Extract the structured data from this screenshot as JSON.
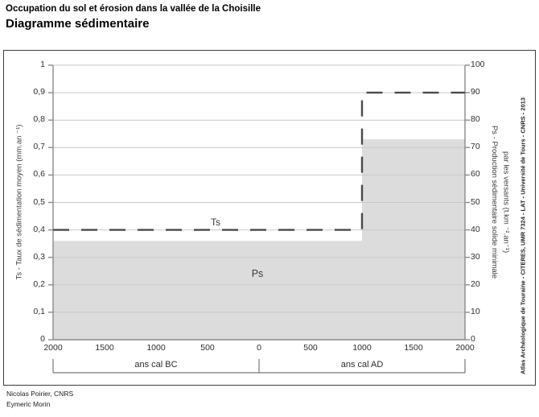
{
  "header": {
    "supertitle": "Occupation du sol et érosion dans la vallée de la Choisille",
    "title": "Diagramme sédimentaire"
  },
  "chart_data": {
    "type": "area",
    "title": "Diagramme sédimentaire",
    "grid": true,
    "x_axis": {
      "range": [
        -2000,
        2000
      ],
      "ticks": [
        {
          "v": -2000,
          "label": "2000"
        },
        {
          "v": -1500,
          "label": "1500"
        },
        {
          "v": -1000,
          "label": "1000"
        },
        {
          "v": -500,
          "label": "500"
        },
        {
          "v": 0,
          "label": "0"
        },
        {
          "v": 500,
          "label": "500"
        },
        {
          "v": 1000,
          "label": "1000"
        },
        {
          "v": 1500,
          "label": "1500"
        },
        {
          "v": 2000,
          "label": "2000"
        }
      ],
      "era_labels": [
        {
          "label": "ans cal BC",
          "span": [
            -2000,
            0
          ]
        },
        {
          "label": "ans cal AD",
          "span": [
            0,
            2000
          ]
        }
      ]
    },
    "y_left_axis": {
      "label": "Ts - Taux de sédimentation moyen (mm.an ⁻¹)",
      "range": [
        0,
        1
      ],
      "ticks": [
        {
          "v": 0,
          "label": "0"
        },
        {
          "v": 0.1,
          "label": "0,1"
        },
        {
          "v": 0.2,
          "label": "0,2"
        },
        {
          "v": 0.3,
          "label": "0,3"
        },
        {
          "v": 0.4,
          "label": "0,4"
        },
        {
          "v": 0.5,
          "label": "0,5"
        },
        {
          "v": 0.6,
          "label": "0,6"
        },
        {
          "v": 0.7,
          "label": "0,7"
        },
        {
          "v": 0.8,
          "label": "0,8"
        },
        {
          "v": 0.9,
          "label": "0,9"
        },
        {
          "v": 1,
          "label": "1"
        }
      ]
    },
    "y_right_axis": {
      "label_line1": "Ps - Production sédimentaire solide minimale",
      "label_line2": "par les versants (t.km ⁻².an⁻¹)",
      "range": [
        0,
        100
      ],
      "ticks": [
        {
          "v": 0,
          "label": "0"
        },
        {
          "v": 10,
          "label": "10"
        },
        {
          "v": 20,
          "label": "20"
        },
        {
          "v": 30,
          "label": "30"
        },
        {
          "v": 40,
          "label": "40"
        },
        {
          "v": 50,
          "label": "50"
        },
        {
          "v": 60,
          "label": "60"
        },
        {
          "v": 70,
          "label": "70"
        },
        {
          "v": 80,
          "label": "80"
        },
        {
          "v": 90,
          "label": "90"
        },
        {
          "v": 100,
          "label": "100"
        }
      ]
    },
    "series": [
      {
        "name": "Ts",
        "style": "dashed",
        "axis": "left",
        "points": [
          [
            -2000,
            0.4
          ],
          [
            1000,
            0.4
          ],
          [
            1000,
            0.9
          ],
          [
            2000,
            0.9
          ]
        ],
        "color": "#4a4a4a"
      },
      {
        "name": "Ps",
        "style": "filled",
        "axis": "right",
        "points": [
          [
            -2000,
            36
          ],
          [
            1000,
            36
          ],
          [
            1000,
            73
          ],
          [
            2000,
            73
          ]
        ],
        "color": "#dcdcdc"
      }
    ],
    "series_labels": [
      {
        "text": "Ts"
      },
      {
        "text": "Ps"
      }
    ]
  },
  "palette": {
    "grid": "#c9c9c9",
    "axis": "#8a8a8a",
    "bracket": "#777777",
    "area_fill": "#dcdcdc",
    "dash_line": "#4a4a4a",
    "frame": "#3d3d3d"
  },
  "credits": {
    "vertical": "Atlas Archéologique de Touraine  - CITERES, UMR 7324 - LAT - Université de Tours - CNRS - 2013",
    "line1": "Nicolas Poirier, CNRS",
    "line2": "Eymeric Morin"
  }
}
